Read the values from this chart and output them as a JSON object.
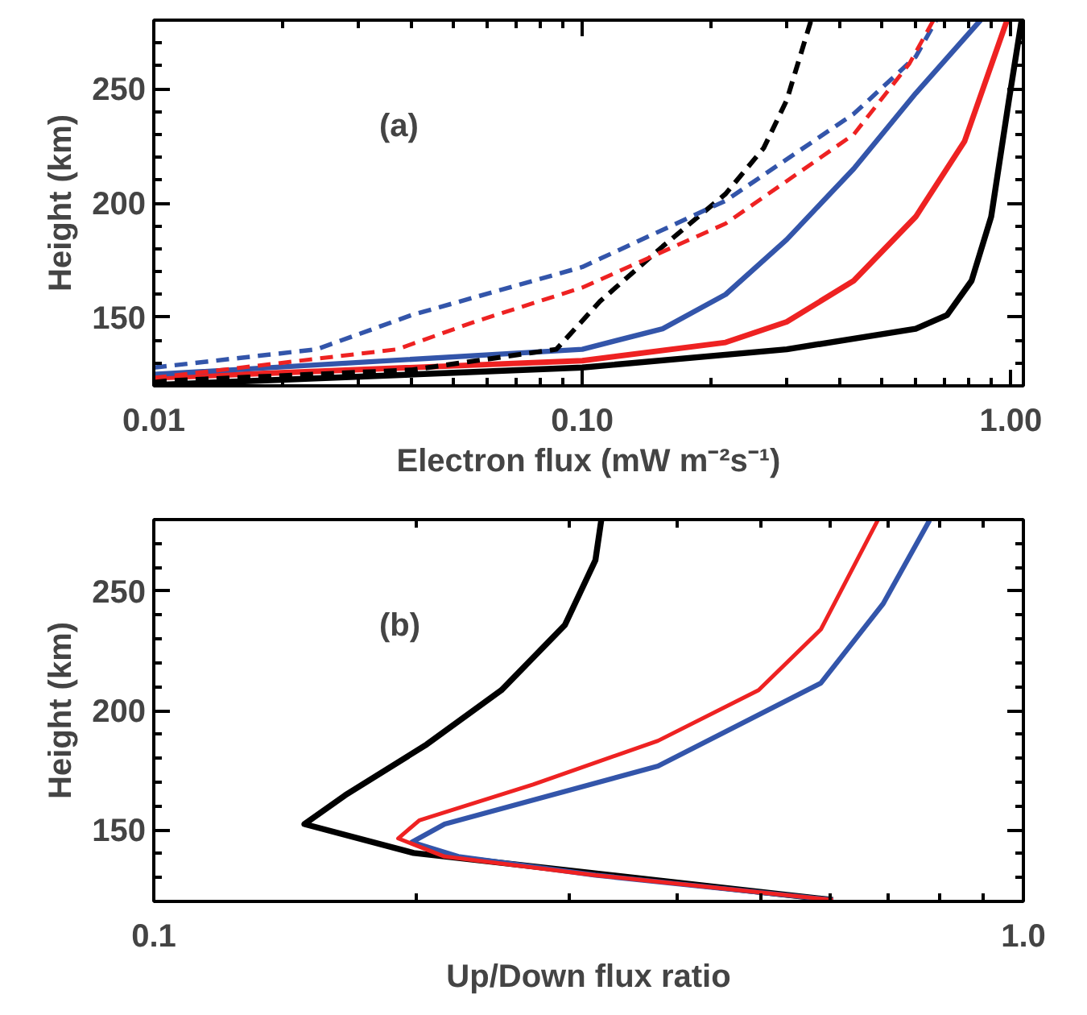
{
  "chart_data": [
    {
      "type": "line",
      "xlabel": "Electron flux (mW m⁻²s⁻¹)",
      "ylabel": "Height (km)",
      "annotations": [
        "(a)"
      ],
      "log": "x",
      "grid": false,
      "xlim": [
        0.01,
        1.07
      ],
      "ylim": [
        120,
        280
      ],
      "xticks": [
        {
          "value": 0.01,
          "label": "0.01"
        },
        {
          "value": 0.1,
          "label": "0.10"
        },
        {
          "value": 1,
          "label": "1.00"
        }
      ],
      "yticks": [
        150,
        200,
        250
      ],
      "series": [
        {
          "color": "#000000",
          "line_style": "solid",
          "x": [
            0.01,
            0.1,
            0.3,
            0.6,
            0.71,
            0.81,
            0.9,
            0.99,
            1.06
          ],
          "values": [
            120.4,
            128,
            136,
            145,
            151,
            166,
            194,
            245,
            280
          ]
        },
        {
          "color": "#ee2222",
          "line_style": "solid",
          "x": [
            0.01,
            0.1,
            0.216,
            0.3,
            0.43,
            0.6,
            0.78,
            0.98
          ],
          "values": [
            123.5,
            131,
            139,
            148,
            166,
            194,
            227,
            280
          ]
        },
        {
          "color": "#3355aa",
          "line_style": "solid",
          "x": [
            0.01,
            0.1,
            0.154,
            0.216,
            0.3,
            0.43,
            0.6,
            0.85
          ],
          "values": [
            125,
            136,
            145,
            160,
            184,
            215,
            248,
            280
          ]
        },
        {
          "color": "#000000",
          "line_style": "dashed",
          "x": [
            0.01,
            0.04,
            0.087,
            0.11,
            0.154,
            0.216,
            0.265,
            0.3,
            0.342
          ],
          "values": [
            122,
            127,
            136,
            157,
            181,
            204,
            224,
            245,
            280
          ]
        },
        {
          "color": "#3355aa",
          "line_style": "dashed",
          "x": [
            0.01,
            0.024,
            0.04,
            0.1,
            0.216,
            0.43,
            0.6,
            0.67
          ],
          "values": [
            128,
            136,
            151,
            172,
            201,
            239,
            264,
            280
          ]
        },
        {
          "color": "#ee2222",
          "line_style": "dashed",
          "x": [
            0.01,
            0.037,
            0.056,
            0.1,
            0.216,
            0.43,
            0.58,
            0.66
          ],
          "values": [
            123.5,
            136,
            148,
            163,
            191,
            230,
            261,
            280
          ]
        }
      ]
    },
    {
      "type": "line",
      "xlabel": "Up/Down flux ratio",
      "ylabel": "Height (km)",
      "annotations": [
        "(b)"
      ],
      "log": "x",
      "grid": false,
      "xlim": [
        0.1,
        1.0
      ],
      "ylim": [
        120,
        280
      ],
      "xticks": [
        {
          "value": 0.1,
          "label": "0.1"
        },
        {
          "value": 1,
          "label": "1.0"
        }
      ],
      "yticks": [
        150,
        200,
        250
      ],
      "series": [
        {
          "color": "#000000",
          "line_style": "solid",
          "x": [
            0.604,
            0.199,
            0.149,
            0.166,
            0.206,
            0.251,
            0.297,
            0.322,
            0.327
          ],
          "values": [
            120.6,
            140.3,
            152.4,
            164.5,
            185.8,
            208.5,
            235.8,
            263,
            279.7
          ]
        },
        {
          "color": "#3355aa",
          "line_style": "solid",
          "x": [
            0.604,
            0.322,
            0.224,
            0.198,
            0.216,
            0.38,
            0.585,
            0.69,
            0.78
          ],
          "values": [
            120.6,
            131,
            138.8,
            144.8,
            152.4,
            176.7,
            211.5,
            244.8,
            279.7
          ]
        },
        {
          "color": "#ee2222",
          "line_style": "solid",
          "x": [
            0.604,
            0.322,
            0.216,
            0.191,
            0.202,
            0.273,
            0.38,
            0.496,
            0.585,
            0.68
          ],
          "values": [
            120.6,
            131,
            138.8,
            146.4,
            154,
            169,
            187.3,
            208.5,
            234,
            279.7
          ]
        }
      ]
    }
  ]
}
